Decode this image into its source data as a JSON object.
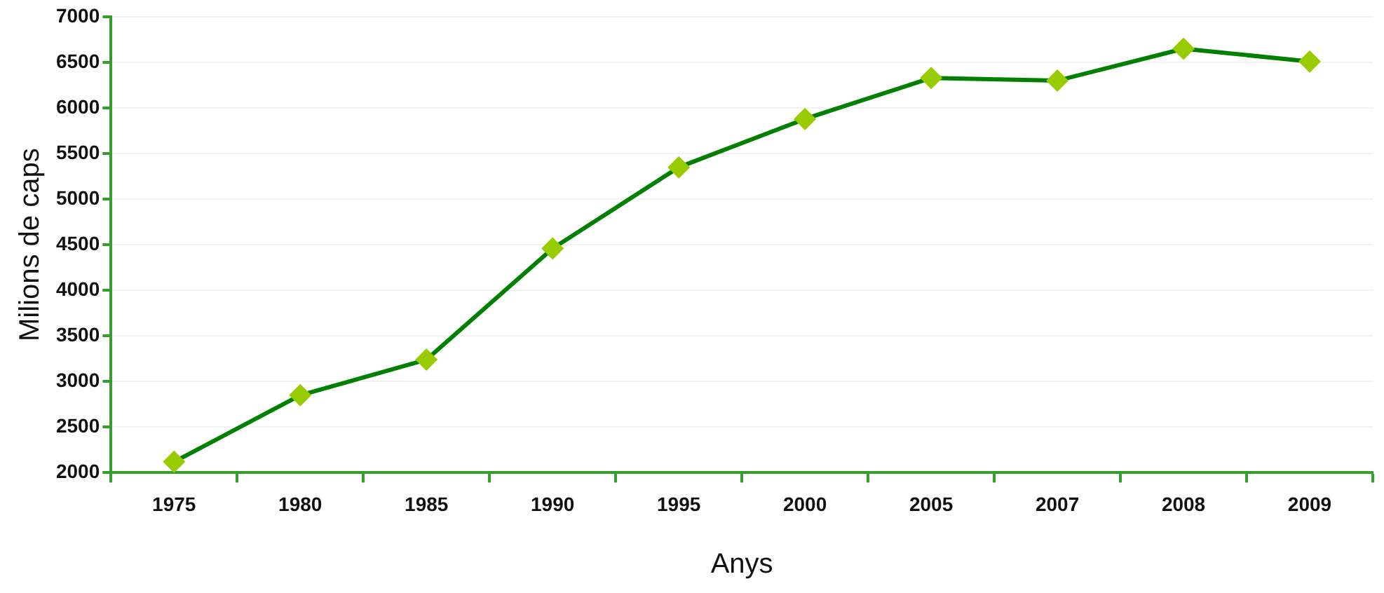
{
  "chart_data": {
    "type": "line",
    "xlabel": "Anys",
    "ylabel": "Milions de caps",
    "categories": [
      "1975",
      "1980",
      "1985",
      "1990",
      "1995",
      "2000",
      "2005",
      "2007",
      "2008",
      "2009"
    ],
    "series": [
      {
        "color": "#008000",
        "values": [
          2120,
          2850,
          3240,
          4460,
          5350,
          5880,
          6330,
          6300,
          6650,
          6510
        ]
      }
    ],
    "marker": "diamond",
    "line_style": "solid",
    "ylim": [
      2000,
      7000
    ],
    "yticks": [
      2000,
      2500,
      3000,
      3500,
      4000,
      4500,
      5000,
      5500,
      6000,
      6500,
      7000
    ],
    "grid": "y",
    "legend": false
  }
}
